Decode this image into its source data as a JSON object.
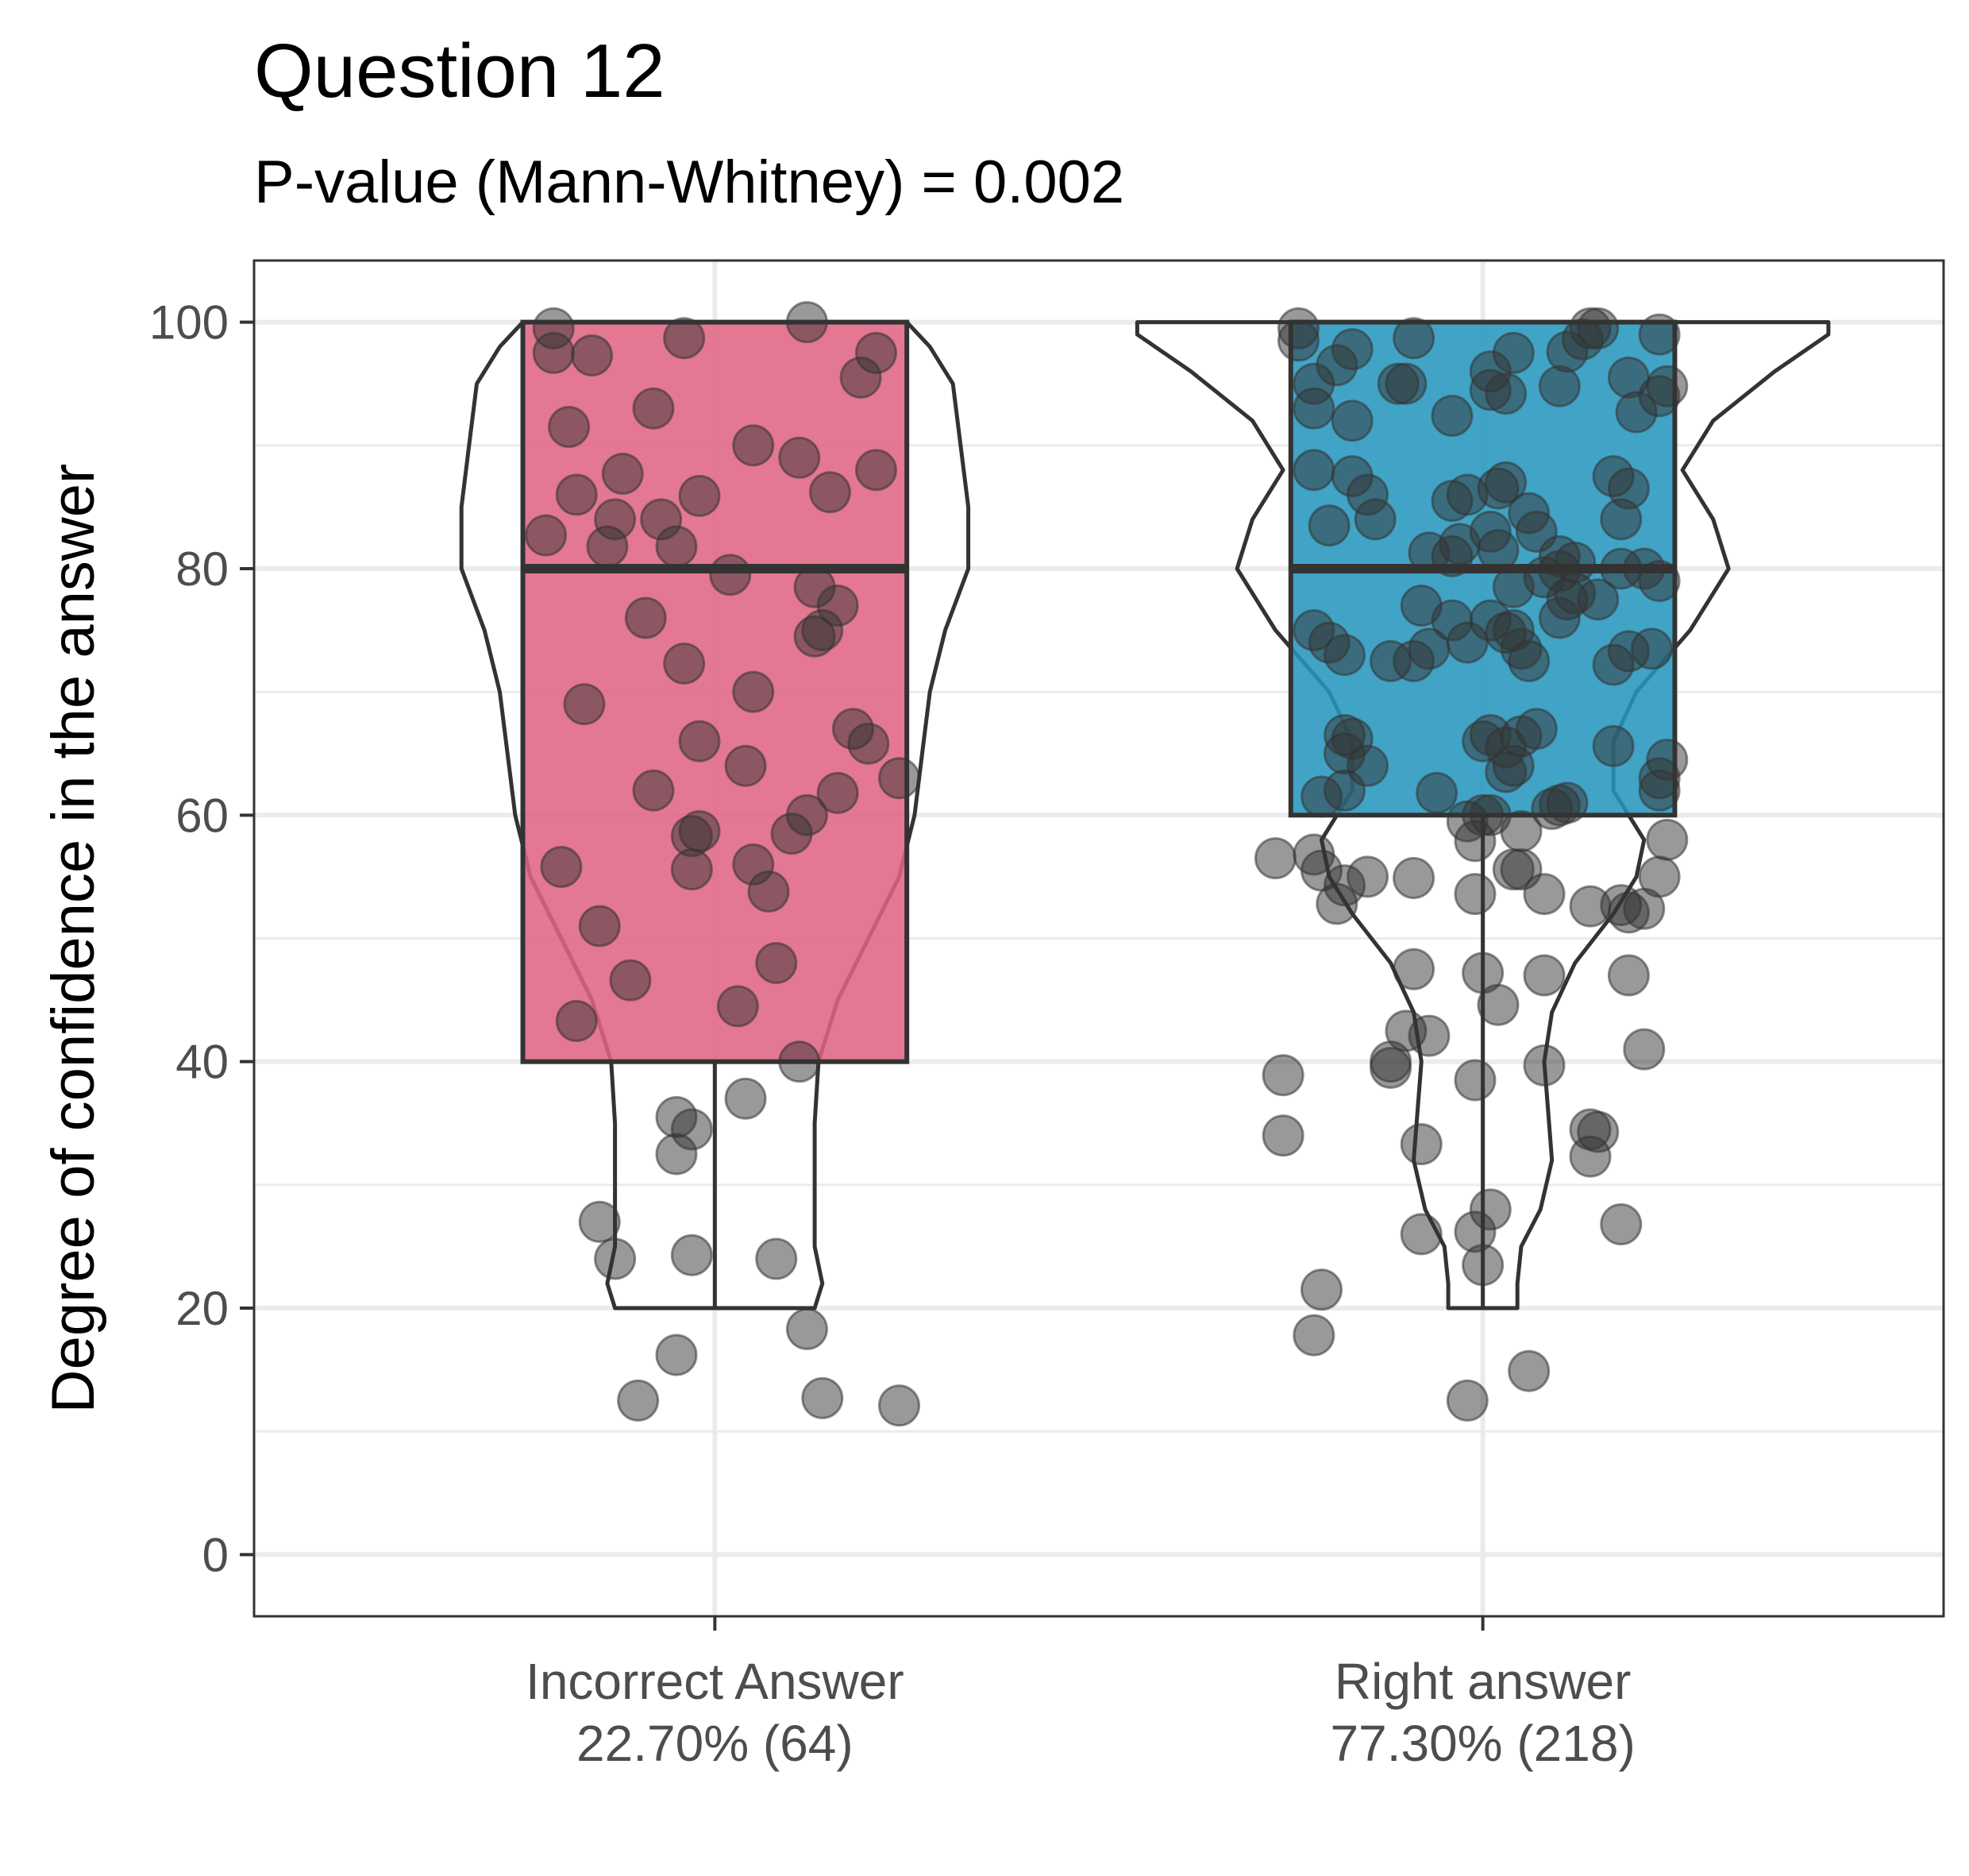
{
  "chart_data": {
    "type": "box",
    "title": "Question 12",
    "subtitle": "P-value (Mann-Whitney) = 0.002",
    "ylabel": "Degree of confidence in the answer",
    "xlabel": "",
    "ylim": [
      -5,
      105
    ],
    "y_ticks": [
      "0",
      "20",
      "40",
      "60",
      "80",
      "100"
    ],
    "grid": true,
    "groups": [
      {
        "category_line1": "Incorrect Answer",
        "category_line2": "22.70% (64)",
        "color": "#e06482",
        "box": {
          "q1": 40,
          "median": 80,
          "q3": 100,
          "whisker_low": 20,
          "whisker_high": 100
        },
        "violin": [
          [
            20,
            0.13
          ],
          [
            22,
            0.14
          ],
          [
            25,
            0.13
          ],
          [
            30,
            0.13
          ],
          [
            35,
            0.13
          ],
          [
            40,
            0.135
          ],
          [
            45,
            0.16
          ],
          [
            50,
            0.2
          ],
          [
            55,
            0.24
          ],
          [
            60,
            0.26
          ],
          [
            65,
            0.27
          ],
          [
            70,
            0.28
          ],
          [
            75,
            0.3
          ],
          [
            80,
            0.33
          ],
          [
            85,
            0.33
          ],
          [
            90,
            0.32
          ],
          [
            95,
            0.31
          ],
          [
            98,
            0.28
          ],
          [
            100,
            0.25
          ]
        ],
        "points": [
          [
            99.5,
            -0.21
          ],
          [
            97.5,
            -0.21
          ],
          [
            97.3,
            -0.16
          ],
          [
            98.7,
            -0.04
          ],
          [
            100,
            0.12
          ],
          [
            97.5,
            0.21
          ],
          [
            93,
            -0.08
          ],
          [
            87.7,
            -0.12
          ],
          [
            86,
            -0.18
          ],
          [
            84,
            -0.13
          ],
          [
            84,
            -0.07
          ],
          [
            82.7,
            -0.22
          ],
          [
            81.8,
            -0.14
          ],
          [
            81.8,
            -0.05
          ],
          [
            85.9,
            -0.02
          ],
          [
            86.2,
            0.15
          ],
          [
            88,
            0.21
          ],
          [
            79.5,
            0.02
          ],
          [
            78.5,
            0.13
          ],
          [
            77,
            0.16
          ],
          [
            75,
            0.14
          ],
          [
            74.5,
            0.13
          ],
          [
            72.3,
            -0.04
          ],
          [
            67,
            0.18
          ],
          [
            65.8,
            0.2
          ],
          [
            63,
            0.24
          ],
          [
            62,
            -0.08
          ],
          [
            61.8,
            0.16
          ],
          [
            60,
            0.12
          ],
          [
            58.5,
            0.1
          ],
          [
            58.7,
            -0.02
          ],
          [
            58.3,
            -0.03
          ],
          [
            55.6,
            -0.03
          ],
          [
            56,
            0.05
          ],
          [
            53.8,
            0.07
          ],
          [
            55.8,
            -0.2
          ],
          [
            46.6,
            -0.11
          ],
          [
            44.5,
            0.03
          ],
          [
            43.3,
            -0.18
          ],
          [
            40,
            0.11
          ],
          [
            37,
            0.04
          ],
          [
            35.5,
            -0.05
          ],
          [
            34.5,
            -0.03
          ],
          [
            32.5,
            -0.05
          ],
          [
            27,
            -0.15
          ],
          [
            24,
            -0.13
          ],
          [
            24.3,
            -0.03
          ],
          [
            24,
            0.08
          ],
          [
            18.3,
            0.12
          ],
          [
            16.2,
            -0.05
          ],
          [
            12.5,
            -0.1
          ],
          [
            12.7,
            0.14
          ],
          [
            12.1,
            0.24
          ],
          [
            91.5,
            -0.19
          ],
          [
            66,
            -0.02
          ],
          [
            70,
            0.05
          ],
          [
            90,
            0.05
          ],
          [
            95.5,
            0.19
          ],
          [
            48,
            0.08
          ],
          [
            51,
            -0.15
          ],
          [
            69,
            -0.17
          ],
          [
            76,
            -0.09
          ],
          [
            64,
            0.04
          ],
          [
            89,
            0.11
          ]
        ]
      },
      {
        "category_line1": "Right answer",
        "category_line2": "77.30% (218)",
        "color": "#2596be",
        "box": {
          "q1": 60,
          "median": 80,
          "q3": 100,
          "whisker_low": 20,
          "whisker_high": 100
        },
        "violin": [
          [
            20,
            0.045
          ],
          [
            22,
            0.045
          ],
          [
            25,
            0.05
          ],
          [
            28,
            0.075
          ],
          [
            32,
            0.09
          ],
          [
            36,
            0.085
          ],
          [
            40,
            0.08
          ],
          [
            44,
            0.09
          ],
          [
            48,
            0.12
          ],
          [
            52,
            0.17
          ],
          [
            55,
            0.2
          ],
          [
            58,
            0.21
          ],
          [
            62,
            0.17
          ],
          [
            66,
            0.17
          ],
          [
            70,
            0.2
          ],
          [
            75,
            0.27
          ],
          [
            80,
            0.32
          ],
          [
            84,
            0.3
          ],
          [
            88,
            0.26
          ],
          [
            92,
            0.3
          ],
          [
            96,
            0.38
          ],
          [
            99,
            0.45
          ],
          [
            100,
            0.45
          ]
        ],
        "points": [
          [
            56.5,
            -0.27
          ],
          [
            56.8,
            -0.22
          ],
          [
            55.5,
            -0.21
          ],
          [
            54.3,
            -0.18
          ],
          [
            55,
            -0.15
          ],
          [
            52.8,
            -0.19
          ],
          [
            54.9,
            -0.09
          ],
          [
            57.9,
            -0.01
          ],
          [
            58.7,
            0.05
          ],
          [
            55.6,
            0.04
          ],
          [
            55.6,
            0.05
          ],
          [
            53.6,
            -0.01
          ],
          [
            53.6,
            0.08
          ],
          [
            52.6,
            0.14
          ],
          [
            52.1,
            0.19
          ],
          [
            52.4,
            0.21
          ],
          [
            52.7,
            0.18
          ],
          [
            55,
            0.23
          ],
          [
            58,
            0.24
          ],
          [
            60.8,
            0.1
          ],
          [
            47.5,
            -0.09
          ],
          [
            47.2,
            0.0
          ],
          [
            44.6,
            0.02
          ],
          [
            47,
            0.08
          ],
          [
            42.5,
            -0.1
          ],
          [
            42.1,
            -0.07
          ],
          [
            40,
            -0.12
          ],
          [
            39.5,
            -0.12
          ],
          [
            39.7,
            0.08
          ],
          [
            38.5,
            -0.01
          ],
          [
            38.9,
            -0.26
          ],
          [
            34,
            -0.26
          ],
          [
            33.3,
            -0.08
          ],
          [
            34.5,
            0.14
          ],
          [
            34.3,
            0.15
          ],
          [
            32.3,
            0.14
          ],
          [
            41,
            0.21
          ],
          [
            47,
            0.19
          ],
          [
            26.8,
            0.18
          ],
          [
            26,
            -0.08
          ],
          [
            26.2,
            -0.01
          ],
          [
            28,
            0.01
          ],
          [
            23.5,
            0.0
          ],
          [
            21.5,
            -0.21
          ],
          [
            17.8,
            -0.22
          ],
          [
            12.5,
            -0.02
          ],
          [
            14.9,
            0.06
          ],
          [
            98.5,
            -0.24
          ],
          [
            97.8,
            -0.17
          ],
          [
            98.7,
            -0.09
          ],
          [
            99.5,
            -0.24
          ],
          [
            96.5,
            -0.19
          ],
          [
            95,
            -0.22
          ],
          [
            93,
            -0.22
          ],
          [
            92,
            -0.17
          ],
          [
            95,
            -0.11
          ],
          [
            95,
            -0.1
          ],
          [
            97.5,
            0.04
          ],
          [
            96,
            0.01
          ],
          [
            94.5,
            0.01
          ],
          [
            92.4,
            -0.04
          ],
          [
            94.2,
            0.03
          ],
          [
            94.8,
            0.1
          ],
          [
            97.6,
            0.11
          ],
          [
            98.6,
            0.13
          ],
          [
            99.5,
            0.14
          ],
          [
            99.5,
            0.15
          ],
          [
            99,
            0.23
          ],
          [
            95.5,
            0.19
          ],
          [
            94,
            0.23
          ],
          [
            92.7,
            0.2
          ],
          [
            94.8,
            0.24
          ],
          [
            88,
            -0.22
          ],
          [
            87.5,
            -0.17
          ],
          [
            86,
            -0.15
          ],
          [
            84,
            -0.14
          ],
          [
            83.5,
            -0.2
          ],
          [
            81.3,
            -0.07
          ],
          [
            81,
            -0.04
          ],
          [
            82,
            -0.03
          ],
          [
            85.5,
            -0.04
          ],
          [
            86,
            -0.02
          ],
          [
            83,
            0.01
          ],
          [
            86.5,
            0.02
          ],
          [
            87,
            0.03
          ],
          [
            84.5,
            0.06
          ],
          [
            83,
            0.07
          ],
          [
            81,
            0.1
          ],
          [
            80.5,
            0.12
          ],
          [
            79.3,
            0.08
          ],
          [
            78,
            0.12
          ],
          [
            77.5,
            0.15
          ],
          [
            79.8,
            0.1
          ],
          [
            80,
            0.18
          ],
          [
            81.5,
            0.02
          ],
          [
            78.5,
            0.04
          ],
          [
            87.5,
            0.17
          ],
          [
            84,
            0.18
          ],
          [
            86.5,
            0.19
          ],
          [
            80,
            0.21
          ],
          [
            79,
            0.23
          ],
          [
            75,
            -0.22
          ],
          [
            74,
            -0.2
          ],
          [
            73,
            -0.18
          ],
          [
            72.5,
            -0.12
          ],
          [
            72.5,
            -0.09
          ],
          [
            73.5,
            -0.07
          ],
          [
            77,
            -0.08
          ],
          [
            75.8,
            -0.04
          ],
          [
            74,
            -0.02
          ],
          [
            75.8,
            0.01
          ],
          [
            74.8,
            0.03
          ],
          [
            73.5,
            0.05
          ],
          [
            72.5,
            0.06
          ],
          [
            75,
            0.04
          ],
          [
            76,
            0.1
          ],
          [
            77.5,
            0.11
          ],
          [
            73.3,
            0.19
          ],
          [
            72.2,
            0.17
          ],
          [
            73.5,
            0.22
          ],
          [
            66.5,
            -0.18
          ],
          [
            66.2,
            -0.17
          ],
          [
            65,
            -0.18
          ],
          [
            64,
            -0.15
          ],
          [
            62,
            -0.18
          ],
          [
            61.5,
            -0.21
          ],
          [
            61.8,
            -0.06
          ],
          [
            60,
            0.0
          ],
          [
            59.5,
            -0.02
          ],
          [
            60,
            0.01
          ],
          [
            66,
            0.0
          ],
          [
            66.5,
            0.01
          ],
          [
            65.5,
            0.03
          ],
          [
            66.4,
            0.05
          ],
          [
            64,
            0.04
          ],
          [
            63.5,
            0.03
          ],
          [
            67,
            0.07
          ],
          [
            60.5,
            0.09
          ],
          [
            61,
            0.11
          ],
          [
            65.6,
            0.17
          ],
          [
            63,
            0.23
          ],
          [
            64.5,
            0.24
          ],
          [
            62,
            0.23
          ]
        ]
      }
    ]
  }
}
